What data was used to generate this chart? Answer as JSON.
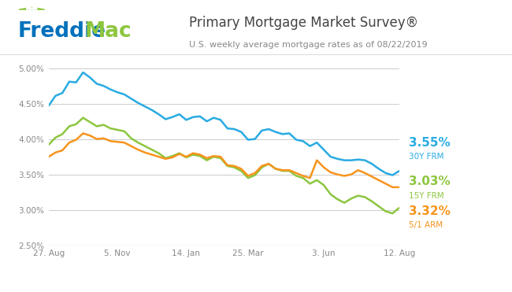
{
  "title": "Primary Mortgage Market Survey®",
  "subtitle": "U.S. weekly average mortgage rates as of 08/22/2019",
  "color_30y": "#29ABE2",
  "color_15y": "#8DC63F",
  "color_arm": "#F7941D",
  "background_color": "#FFFFFF",
  "grid_color": "#CCCCCC",
  "ylim": [
    0.025,
    0.052
  ],
  "yticks": [
    0.025,
    0.03,
    0.035,
    0.04,
    0.045,
    0.05
  ],
  "ytick_labels": [
    "2.50%",
    "3.00%",
    "3.50%",
    "4.00%",
    "4.50%",
    "5.00%"
  ],
  "xtick_labels": [
    "27. Aug",
    "5. Nov",
    "14. Jan",
    "25. Mar",
    "3. Jun",
    "12. Aug"
  ],
  "xtick_positions": [
    0,
    10,
    20,
    29,
    40,
    51
  ],
  "label_30y_rate": "3.55%",
  "label_30y_name": "30Y FRM",
  "label_15y_rate": "3.03%",
  "label_15y_name": "15Y FRM",
  "label_arm_rate": "3.32%",
  "label_arm_name": "5/1 ARM",
  "freddie_blue": "#29ABE2",
  "freddie_green": "#8DC63F",
  "freddie_text_blue": "#0071BC",
  "x_data": [
    0,
    1,
    2,
    3,
    4,
    5,
    6,
    7,
    8,
    9,
    10,
    11,
    12,
    13,
    14,
    15,
    16,
    17,
    18,
    19,
    20,
    21,
    22,
    23,
    24,
    25,
    26,
    27,
    28,
    29,
    30,
    31,
    32,
    33,
    34,
    35,
    36,
    37,
    38,
    39,
    40,
    41,
    42,
    43,
    44,
    45,
    46,
    47,
    48,
    49,
    50,
    51
  ],
  "y_30y": [
    0.0447,
    0.0461,
    0.0465,
    0.0481,
    0.048,
    0.0494,
    0.0487,
    0.0478,
    0.0475,
    0.047,
    0.0466,
    0.0463,
    0.0457,
    0.0451,
    0.0446,
    0.0441,
    0.0435,
    0.0428,
    0.0431,
    0.0435,
    0.0427,
    0.0431,
    0.0432,
    0.0425,
    0.043,
    0.0427,
    0.0415,
    0.0414,
    0.041,
    0.0399,
    0.04,
    0.0412,
    0.0414,
    0.041,
    0.0407,
    0.0408,
    0.0399,
    0.0397,
    0.039,
    0.0395,
    0.0385,
    0.0375,
    0.0372,
    0.037,
    0.037,
    0.0371,
    0.037,
    0.0365,
    0.0358,
    0.0352,
    0.0349,
    0.0355
  ],
  "y_15y": [
    0.0392,
    0.0402,
    0.0407,
    0.0418,
    0.0421,
    0.043,
    0.0424,
    0.0418,
    0.042,
    0.0415,
    0.0413,
    0.0411,
    0.0401,
    0.0395,
    0.039,
    0.0385,
    0.038,
    0.0373,
    0.0376,
    0.038,
    0.0374,
    0.0378,
    0.0376,
    0.037,
    0.0375,
    0.0373,
    0.0362,
    0.036,
    0.0355,
    0.0345,
    0.0349,
    0.036,
    0.0365,
    0.0358,
    0.0355,
    0.0355,
    0.0348,
    0.0345,
    0.0337,
    0.0342,
    0.0335,
    0.0322,
    0.0315,
    0.031,
    0.0316,
    0.032,
    0.0318,
    0.0312,
    0.0305,
    0.0298,
    0.0295,
    0.0303
  ],
  "y_arm": [
    0.0375,
    0.0381,
    0.0384,
    0.0395,
    0.0399,
    0.0408,
    0.0405,
    0.04,
    0.0401,
    0.0397,
    0.0396,
    0.0395,
    0.039,
    0.0385,
    0.0381,
    0.0378,
    0.0375,
    0.0372,
    0.0374,
    0.0379,
    0.0375,
    0.038,
    0.0378,
    0.0373,
    0.0376,
    0.0375,
    0.0363,
    0.0362,
    0.0358,
    0.0348,
    0.0352,
    0.0362,
    0.0365,
    0.0358,
    0.0356,
    0.0356,
    0.0352,
    0.0348,
    0.0345,
    0.037,
    0.036,
    0.0353,
    0.035,
    0.0348,
    0.035,
    0.0356,
    0.0352,
    0.0347,
    0.0342,
    0.0337,
    0.0332,
    0.0332
  ]
}
